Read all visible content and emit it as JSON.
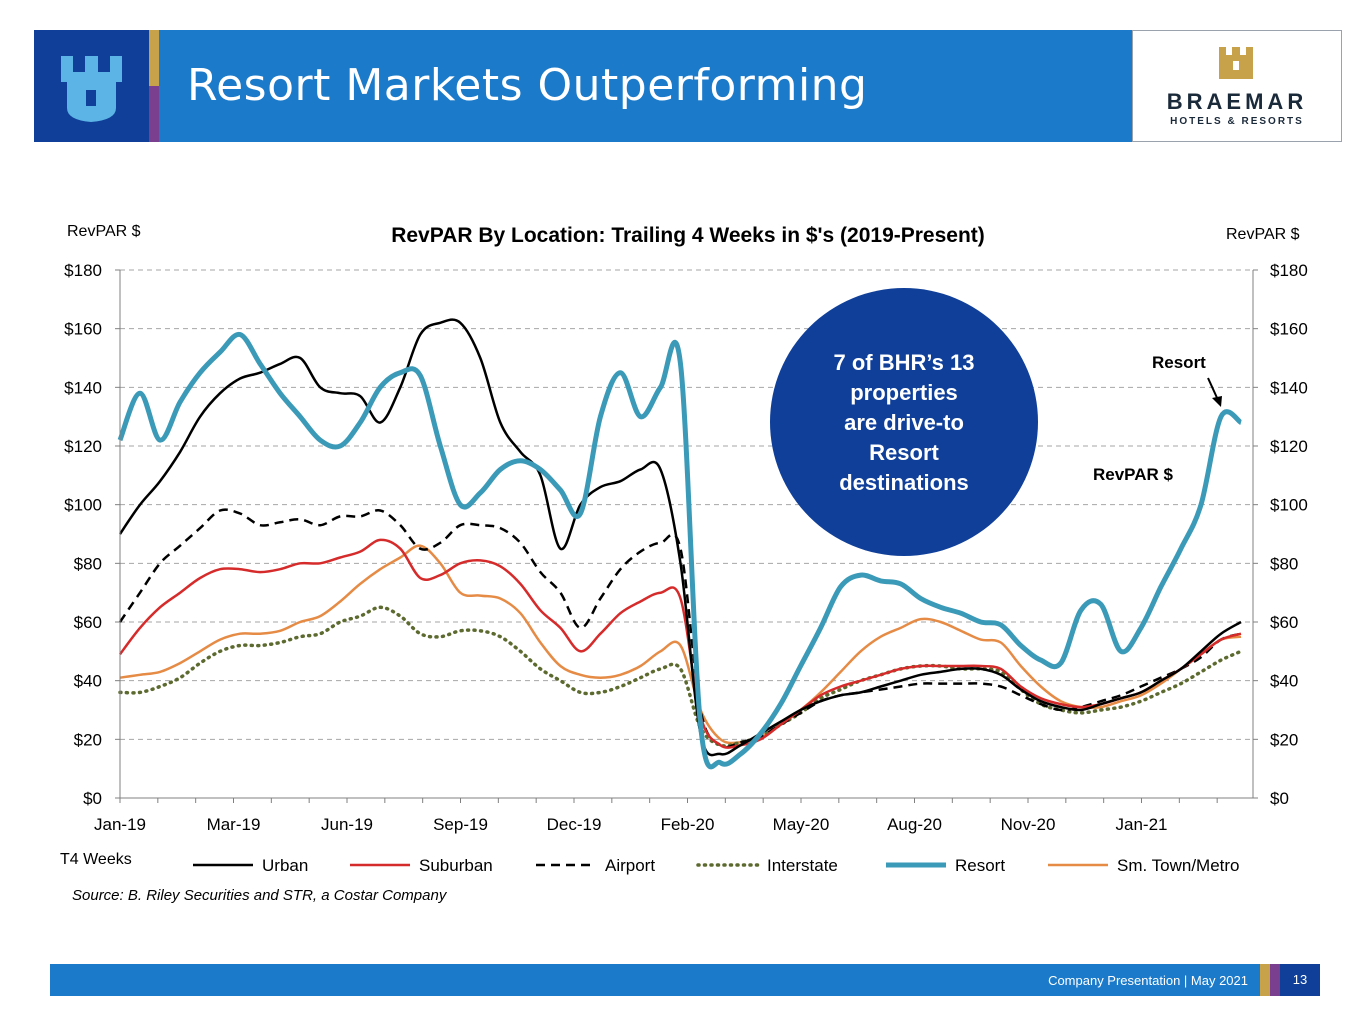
{
  "header": {
    "title": "Resort Markets Outperforming",
    "colors": {
      "dark_blue": "#0f3f99",
      "mid_blue": "#1b7ac9",
      "gold": "#c8a24a",
      "purple": "#7b3f8f"
    }
  },
  "logo": {
    "name": "BRAEMAR",
    "sub": "HOTELS & RESORTS",
    "icon": "castle-icon"
  },
  "chart_data": {
    "type": "line",
    "title": "RevPAR By Location: Trailing 4 Weeks in $'s (2019-Present)",
    "ylabel_left": "RevPAR $",
    "ylabel_right": "RevPAR $",
    "xlabel": "T4 Weeks",
    "ylim": [
      0,
      180
    ],
    "y_ticks": [
      "$0",
      "$20",
      "$40",
      "$60",
      "$80",
      "$100",
      "$120",
      "$140",
      "$160",
      "$180"
    ],
    "x_tick_labels": [
      "Jan-19",
      "Mar-19",
      "Jun-19",
      "Sep-19",
      "Dec-19",
      "Feb-20",
      "May-20",
      "Aug-20",
      "Nov-20",
      "Jan-21"
    ],
    "grid": true,
    "legend_position": "bottom",
    "series": [
      {
        "name": "Urban",
        "color": "#000000",
        "style": "solid",
        "values": [
          90,
          100,
          108,
          118,
          130,
          138,
          143,
          145,
          148,
          150,
          140,
          138,
          137,
          128,
          140,
          158,
          162,
          162,
          150,
          128,
          118,
          110,
          85,
          100,
          106,
          108,
          112,
          112,
          80,
          22,
          15,
          18,
          22,
          26,
          30,
          33,
          35,
          36,
          38,
          40,
          42,
          43,
          44,
          44,
          42,
          37,
          33,
          31,
          30,
          32,
          34,
          36,
          40,
          44,
          50,
          56,
          60
        ]
      },
      {
        "name": "Suburban",
        "color": "#d62b2b",
        "style": "solid",
        "values": [
          49,
          58,
          65,
          70,
          75,
          78,
          78,
          77,
          78,
          80,
          80,
          82,
          84,
          88,
          85,
          75,
          76,
          80,
          81,
          79,
          73,
          64,
          58,
          50,
          56,
          63,
          67,
          70,
          68,
          28,
          18,
          18,
          20,
          25,
          30,
          35,
          38,
          40,
          42,
          44,
          45,
          45,
          45,
          45,
          44,
          38,
          34,
          32,
          31,
          32,
          34,
          36,
          40,
          44,
          49,
          54,
          56
        ]
      },
      {
        "name": "Airport",
        "color": "#000000",
        "style": "dashed",
        "values": [
          60,
          70,
          80,
          86,
          92,
          98,
          97,
          93,
          94,
          95,
          93,
          96,
          96,
          98,
          93,
          85,
          87,
          93,
          93,
          92,
          87,
          77,
          70,
          58,
          68,
          78,
          84,
          87,
          85,
          30,
          18,
          19,
          21,
          25,
          29,
          33,
          35,
          36,
          37,
          38,
          39,
          39,
          39,
          39,
          38,
          35,
          32,
          30,
          31,
          33,
          35,
          38,
          41,
          44,
          48,
          54,
          56
        ]
      },
      {
        "name": "Interstate",
        "color": "#5c6a2f",
        "style": "dotted",
        "values": [
          36,
          36,
          38,
          41,
          46,
          50,
          52,
          52,
          53,
          55,
          56,
          60,
          62,
          65,
          62,
          56,
          55,
          57,
          57,
          55,
          50,
          44,
          40,
          36,
          36,
          38,
          41,
          44,
          44,
          24,
          18,
          19,
          21,
          25,
          29,
          34,
          37,
          40,
          42,
          44,
          45,
          45,
          44,
          44,
          43,
          37,
          32,
          30,
          29,
          30,
          31,
          33,
          36,
          39,
          43,
          47,
          50
        ]
      },
      {
        "name": "Resort",
        "color": "#3b9ab8",
        "style": "solid-thick",
        "values": [
          122,
          138,
          122,
          135,
          145,
          152,
          158,
          148,
          138,
          130,
          122,
          120,
          128,
          140,
          145,
          144,
          120,
          100,
          104,
          112,
          115,
          112,
          105,
          97,
          130,
          145,
          130,
          140,
          148,
          25,
          12,
          15,
          22,
          32,
          45,
          58,
          72,
          76,
          74,
          73,
          68,
          65,
          63,
          60,
          59,
          52,
          47,
          46,
          64,
          66,
          50,
          58,
          72,
          85,
          100,
          130,
          128
        ]
      },
      {
        "name": "Sm. Town/Metro",
        "color": "#e58b45",
        "style": "solid",
        "values": [
          41,
          42,
          43,
          46,
          50,
          54,
          56,
          56,
          57,
          60,
          62,
          67,
          73,
          78,
          82,
          86,
          80,
          70,
          69,
          68,
          63,
          53,
          45,
          42,
          41,
          42,
          45,
          50,
          52,
          30,
          20,
          19,
          21,
          25,
          30,
          36,
          43,
          50,
          55,
          58,
          61,
          60,
          57,
          54,
          53,
          45,
          38,
          33,
          31,
          31,
          33,
          35,
          39,
          44,
          49,
          54,
          55
        ]
      }
    ],
    "annotations": {
      "bubble": "7 of BHR’s 13 properties are drive-to Resort destinations",
      "resort_label": "Resort",
      "revpar_label": "RevPAR $"
    },
    "source": "Source: B. Riley Securities and STR, a Costar Company"
  },
  "footer": {
    "text": "Company Presentation  |  May 2021",
    "page": "13"
  }
}
